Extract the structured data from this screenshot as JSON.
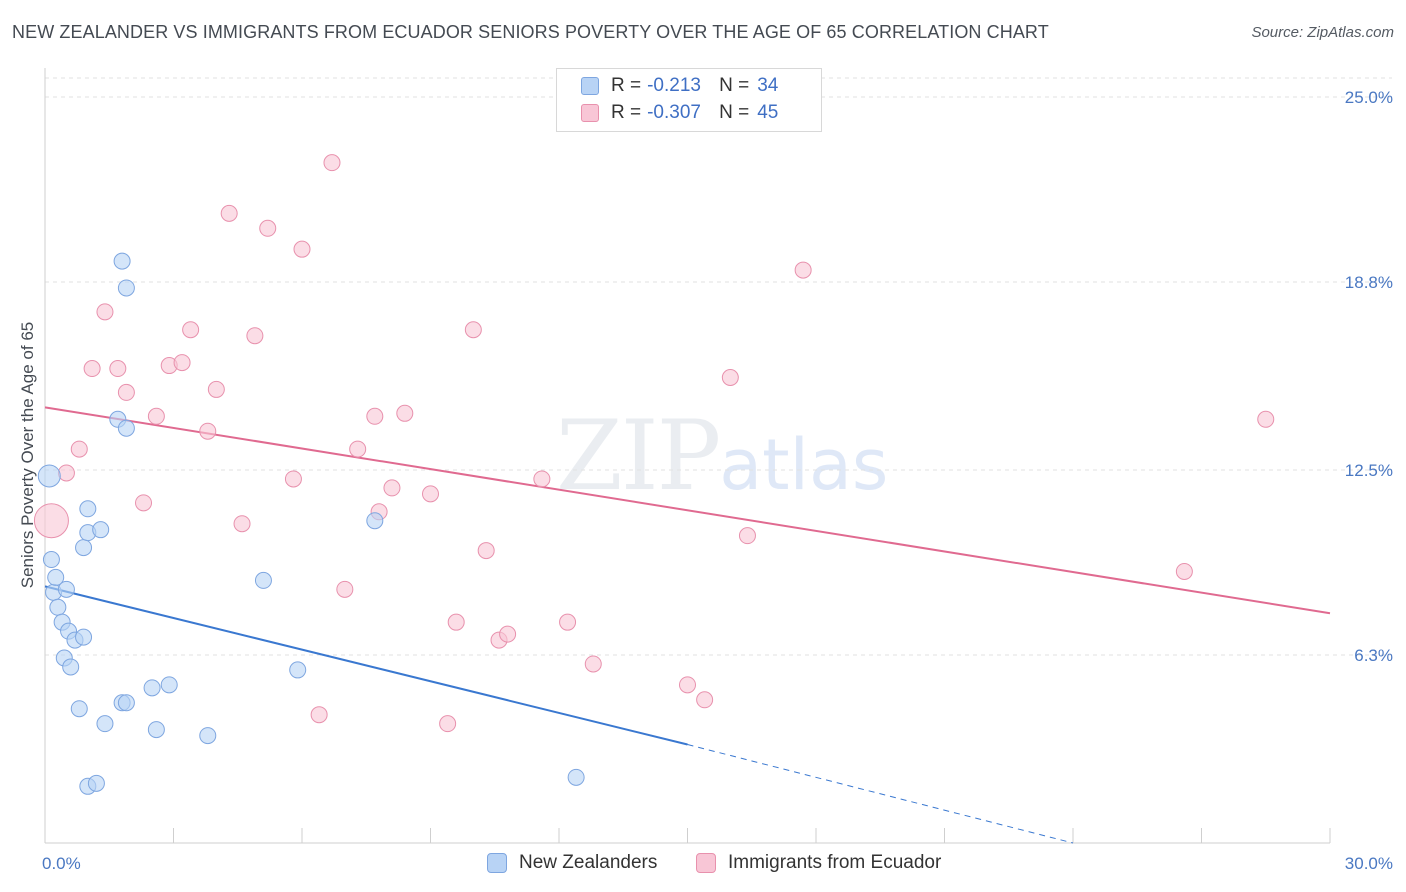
{
  "title": "NEW ZEALANDER VS IMMIGRANTS FROM ECUADOR SENIORS POVERTY OVER THE AGE OF 65 CORRELATION CHART",
  "source": "Source: ZipAtlas.com",
  "watermark": {
    "zip": "ZIP",
    "atlas": "atlas"
  },
  "legend": {
    "rows": [
      {
        "r_label": "R =",
        "r_value": "-0.213",
        "n_label": "N =",
        "n_value": "34",
        "color": "#a8c8f0"
      },
      {
        "r_label": "R =",
        "r_value": "-0.307",
        "n_label": "N =",
        "n_value": "45",
        "color": "#f5b8cc"
      }
    ]
  },
  "bottom_legend": {
    "series_a": "New Zealanders",
    "series_b": "Immigrants from Ecuador"
  },
  "chart_data": {
    "type": "scatter",
    "title": "NEW ZEALANDER VS IMMIGRANTS FROM ECUADOR SENIORS POVERTY OVER THE AGE OF 65 CORRELATION CHART",
    "xlabel": "",
    "ylabel": "Seniors Poverty Over the Age of 65",
    "xlim": [
      0,
      30
    ],
    "ylim": [
      0,
      25
    ],
    "x_tick_labels": [
      "0.0%",
      "30.0%"
    ],
    "y_tick_labels": [
      "6.3%",
      "12.5%",
      "18.8%",
      "25.0%"
    ],
    "y_ticks": [
      6.3,
      12.5,
      18.8,
      25.0
    ],
    "grid": true,
    "colors": {
      "a_fill": "#b8d3f5",
      "a_stroke": "#7ea6e0",
      "a_line": "#3a78d0",
      "b_fill": "#f8c6d6",
      "b_stroke": "#e891ad",
      "b_line": "#e06a90"
    },
    "series": [
      {
        "name": "New Zealanders",
        "points": [
          [
            0.1,
            12.3
          ],
          [
            0.15,
            9.5
          ],
          [
            0.2,
            8.4
          ],
          [
            0.25,
            8.9
          ],
          [
            0.3,
            7.9
          ],
          [
            0.4,
            7.4
          ],
          [
            0.45,
            6.2
          ],
          [
            0.5,
            8.5
          ],
          [
            0.55,
            7.1
          ],
          [
            0.6,
            5.9
          ],
          [
            0.7,
            6.8
          ],
          [
            0.8,
            4.5
          ],
          [
            0.9,
            6.9
          ],
          [
            0.9,
            9.9
          ],
          [
            1.0,
            10.4
          ],
          [
            1.0,
            11.2
          ],
          [
            1.0,
            1.9
          ],
          [
            1.2,
            2.0
          ],
          [
            1.3,
            10.5
          ],
          [
            1.4,
            4.0
          ],
          [
            1.7,
            14.2
          ],
          [
            1.8,
            4.7
          ],
          [
            1.9,
            4.7
          ],
          [
            1.9,
            13.9
          ],
          [
            1.9,
            18.6
          ],
          [
            1.8,
            19.5
          ],
          [
            2.6,
            3.8
          ],
          [
            2.5,
            5.2
          ],
          [
            2.9,
            5.3
          ],
          [
            3.8,
            3.6
          ],
          [
            5.1,
            8.8
          ],
          [
            5.9,
            5.8
          ],
          [
            7.7,
            10.8
          ],
          [
            12.4,
            2.2
          ]
        ],
        "trend": {
          "x0": 0,
          "y0": 8.6,
          "x1": 15.0,
          "y1": 3.3,
          "dash_x1": 24.0,
          "dash_y1": 0
        }
      },
      {
        "name": "Immigrants from Ecuador",
        "points": [
          [
            0.15,
            10.8
          ],
          [
            0.5,
            12.4
          ],
          [
            0.8,
            13.2
          ],
          [
            1.1,
            15.9
          ],
          [
            1.4,
            17.8
          ],
          [
            1.7,
            15.9
          ],
          [
            1.9,
            15.1
          ],
          [
            2.3,
            11.4
          ],
          [
            2.6,
            14.3
          ],
          [
            2.9,
            16.0
          ],
          [
            3.2,
            16.1
          ],
          [
            3.4,
            17.2
          ],
          [
            3.8,
            13.8
          ],
          [
            4.0,
            15.2
          ],
          [
            4.3,
            21.1
          ],
          [
            4.6,
            10.7
          ],
          [
            4.9,
            17.0
          ],
          [
            5.2,
            20.6
          ],
          [
            5.8,
            12.2
          ],
          [
            6.0,
            19.9
          ],
          [
            6.4,
            4.3
          ],
          [
            6.7,
            22.8
          ],
          [
            7.0,
            8.5
          ],
          [
            7.3,
            13.2
          ],
          [
            7.7,
            14.3
          ],
          [
            7.8,
            11.1
          ],
          [
            8.1,
            11.9
          ],
          [
            8.4,
            14.4
          ],
          [
            9.0,
            11.7
          ],
          [
            9.4,
            4.0
          ],
          [
            9.6,
            7.4
          ],
          [
            10.0,
            17.2
          ],
          [
            10.3,
            9.8
          ],
          [
            10.6,
            6.8
          ],
          [
            10.8,
            7.0
          ],
          [
            11.6,
            12.2
          ],
          [
            12.2,
            7.4
          ],
          [
            12.8,
            6.0
          ],
          [
            15.0,
            5.3
          ],
          [
            15.4,
            4.8
          ],
          [
            16.0,
            15.6
          ],
          [
            16.4,
            10.3
          ],
          [
            17.7,
            19.2
          ],
          [
            26.6,
            9.1
          ],
          [
            28.5,
            14.2
          ]
        ],
        "trend": {
          "x0": 0,
          "y0": 14.6,
          "x1": 30.0,
          "y1": 7.7
        }
      }
    ]
  }
}
